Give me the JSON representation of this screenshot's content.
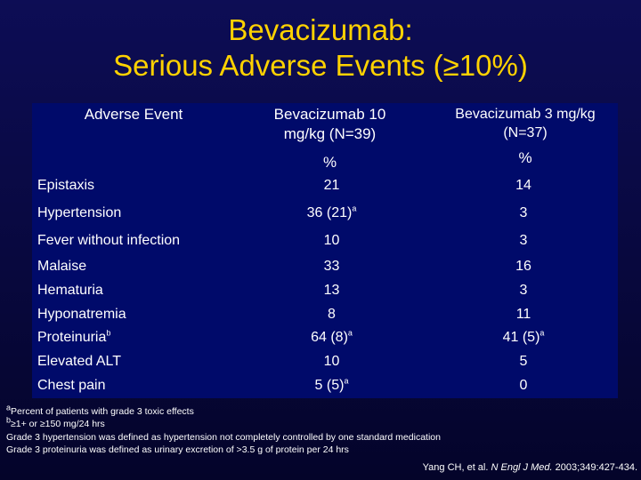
{
  "title": {
    "line1": "Bevacizumab:",
    "line2": "Serious Adverse Events (≥10%)"
  },
  "table": {
    "headers": {
      "event": "Adverse Event",
      "col1_line1": "Bevacizumab 10",
      "col1_line2": "mg/kg (N=39)",
      "col2_line1": "Bevacizumab 3 mg/kg",
      "col2_line2": "(N=37)",
      "col1_unit": "%",
      "col2_unit": "%"
    },
    "rows": [
      {
        "event": "Epistaxis",
        "v1": "21",
        "v1_sup": "",
        "v2": "14",
        "v2_sup": ""
      },
      {
        "event": "Hypertension",
        "v1": "36 (21)",
        "v1_sup": "a",
        "v2": "3",
        "v2_sup": ""
      },
      {
        "event": "Fever without infection",
        "v1": "10",
        "v1_sup": "",
        "v2": "3",
        "v2_sup": ""
      },
      {
        "event": "Malaise",
        "v1": "33",
        "v1_sup": "",
        "v2": "16",
        "v2_sup": ""
      },
      {
        "event": "Hematuria",
        "v1": "13",
        "v1_sup": "",
        "v2": "3",
        "v2_sup": ""
      },
      {
        "event": "Hyponatremia",
        "v1": "8",
        "v1_sup": "",
        "v2": "11",
        "v2_sup": ""
      },
      {
        "event": "Proteinuria",
        "event_sup": "b",
        "v1": "64 (8)",
        "v1_sup": "a",
        "v2": "41 (5)",
        "v2_sup": "a"
      },
      {
        "event": "Elevated ALT",
        "v1": "10",
        "v1_sup": "",
        "v2": "5",
        "v2_sup": ""
      },
      {
        "event": "Chest pain",
        "v1": "5 (5)",
        "v1_sup": "a",
        "v2": "0",
        "v2_sup": ""
      }
    ]
  },
  "footnotes": {
    "a_mark": "a",
    "a_text": "Percent of patients with grade 3 toxic effects",
    "b_mark": "b",
    "b_text": "≥1+ or ≥150 mg/24 hrs",
    "line3": "Grade 3 hypertension was defined as hypertension not completely controlled by one standard medication",
    "line4": "Grade 3 proteinuria was defined as urinary excretion of >3.5 g of protein per 24 hrs"
  },
  "citation": {
    "authors": "Yang CH, et al. ",
    "journal": "N Engl J Med.",
    "details": " 2003;349:427-434."
  },
  "colors": {
    "background": "#08083e",
    "title": "#ffd200",
    "table_bg": "#000a6a",
    "text": "#ffffff"
  }
}
